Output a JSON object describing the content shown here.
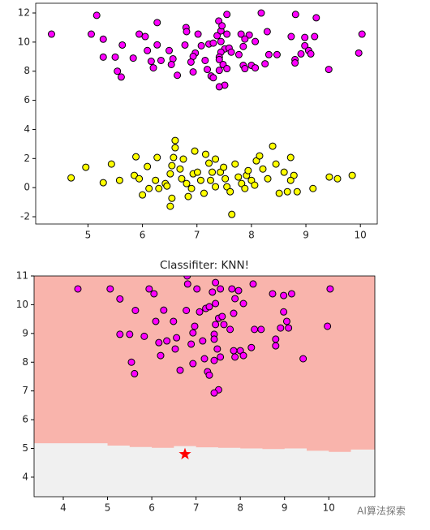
{
  "chart_data": [
    {
      "type": "scatter",
      "xlim": [
        4.04,
        10.31
      ],
      "ylim": [
        -2.5,
        12.67
      ],
      "xticks": [
        5,
        6,
        7,
        8,
        9,
        10
      ],
      "yticks": [
        -2,
        0,
        2,
        4,
        6,
        8,
        10,
        12
      ],
      "series": [
        {
          "color": "#ff00ff",
          "x": [
            4.33,
            5.06,
            5.28,
            5.63,
            5.5,
            5.28,
            5.94,
            6.05,
            5.83,
            6.16,
            6.34,
            6.09,
            6.27,
            6.49,
            6.2,
            6.56,
            6.53,
            6.64,
            5.54,
            5.61,
            6.8,
            6.81,
            6.78,
            7.02,
            6.97,
            6.93,
            6.89,
            6.93,
            7.08,
            7.22,
            7.3,
            7.15,
            7.19,
            7.26,
            7.3,
            7.37,
            7.44,
            7.55,
            7.44,
            7.51,
            7.59,
            7.44,
            7.63,
            7.41,
            7.41,
            7.48,
            7.41,
            7.55,
            7.51,
            7.41,
            7.81,
            7.96,
            7.88,
            7.85,
            7.77,
            8.07,
            8.29,
            7.85,
            8.0,
            7.88,
            8.07,
            8.25,
            8.32,
            8.47,
            8.73,
            8.98,
            9.16,
            8.98,
            9.05,
            8.91,
            9.09,
            8.8,
            8.8,
            9.42,
            9.97,
            10.03,
            5.16,
            6.27,
            7.4,
            7.55,
            8.18,
            8.81,
            9.19,
            7.46
          ],
          "y": [
            10.55,
            10.55,
            10.2,
            9.8,
            8.97,
            8.97,
            10.55,
            10.38,
            8.9,
            8.68,
            8.74,
            9.42,
            9.81,
            9.42,
            8.23,
            8.85,
            8.46,
            7.72,
            8.0,
            7.6,
            11.0,
            10.72,
            9.8,
            10.55,
            9.25,
            9.02,
            8.63,
            7.95,
            9.75,
            9.87,
            9.93,
            8.74,
            8.12,
            7.67,
            7.55,
            10.44,
            10.77,
            10.55,
            10.04,
            9.53,
            9.59,
            9.31,
            9.31,
            8.97,
            8.8,
            8.46,
            8.06,
            8.18,
            7.04,
            6.93,
            10.55,
            10.49,
            10.21,
            9.7,
            9.14,
            10.04,
            10.72,
            8.4,
            8.4,
            8.18,
            8.23,
            8.51,
            9.14,
            9.14,
            10.38,
            10.32,
            10.38,
            9.75,
            9.42,
            9.19,
            9.19,
            8.8,
            8.57,
            8.12,
            9.25,
            10.55,
            11.84,
            11.34,
            11.45,
            11.9,
            12.0,
            11.9,
            11.67,
            11.12
          ]
        },
        {
          "color": "#ffff00",
          "x": [
            4.69,
            4.96,
            5.28,
            5.43,
            5.58,
            5.85,
            5.88,
            5.94,
            6.0,
            6.12,
            6.09,
            6.24,
            6.27,
            6.3,
            6.42,
            6.45,
            6.51,
            6.54,
            6.6,
            6.6,
            6.57,
            6.54,
            6.51,
            6.69,
            6.72,
            6.75,
            6.81,
            6.84,
            6.9,
            6.96,
            6.93,
            7.01,
            7.07,
            7.13,
            7.16,
            7.22,
            7.28,
            7.25,
            7.34,
            7.34,
            7.43,
            7.49,
            7.52,
            7.55,
            7.61,
            7.64,
            7.7,
            7.76,
            7.82,
            7.88,
            7.91,
            7.94,
            8.0,
            8.06,
            8.09,
            8.15,
            8.21,
            8.3,
            8.39,
            8.45,
            8.51,
            8.6,
            8.66,
            8.72,
            8.78,
            8.84,
            9.13,
            9.43,
            9.58,
            9.85,
            8.72
          ],
          "y": [
            0.67,
            1.4,
            0.34,
            1.62,
            0.5,
            0.84,
            2.12,
            0.61,
            -0.5,
            -0.06,
            1.45,
            0.5,
            2.07,
            -0.06,
            0.28,
            0.11,
            0.95,
            1.51,
            3.24,
            2.74,
            2.07,
            -0.73,
            -1.28,
            1.28,
            0.61,
            1.96,
            0.28,
            -0.61,
            -0.06,
            2.51,
            0.95,
            1.06,
            0.5,
            -0.39,
            2.29,
            1.68,
            1.06,
            0.5,
            0.06,
            1.96,
            1.06,
            1.4,
            0.61,
            0.06,
            -0.28,
            -1.84,
            1.62,
            0.73,
            0.28,
            -0.06,
            0.84,
            1.17,
            0.5,
            0.17,
            1.84,
            2.18,
            1.28,
            0.61,
            2.85,
            1.62,
            -0.39,
            1.06,
            -0.28,
            2.07,
            0.84,
            -0.28,
            -0.06,
            0.73,
            0.61,
            0.84,
            0.5
          ]
        }
      ]
    },
    {
      "type": "decision-region",
      "title": "Classifiter: KNN!",
      "xlim": [
        3.34,
        11.04
      ],
      "ylim": [
        3.32,
        11
      ],
      "xticks": [
        4,
        5,
        6,
        7,
        8,
        9,
        10
      ],
      "yticks": [
        4,
        5,
        6,
        7,
        8,
        9,
        10,
        11
      ],
      "region_colors": [
        "#f9b4ac",
        "#f0f0f0"
      ],
      "boundary": {
        "x": [
          3.34,
          4.5,
          5.0,
          5.5,
          6.0,
          6.5,
          7.0,
          7.5,
          8.0,
          8.5,
          9.0,
          9.5,
          10.0,
          10.5,
          11.04
        ],
        "y": [
          5.18,
          5.18,
          5.1,
          5.05,
          5.02,
          5.08,
          5.04,
          5.02,
          5.0,
          4.98,
          5.0,
          4.92,
          4.88,
          4.96,
          4.98
        ]
      },
      "marker": {
        "x": 6.75,
        "y": 4.8,
        "color": "#ff0000"
      },
      "series": [
        {
          "color": "#ff00ff",
          "x": [
            4.33,
            5.06,
            5.28,
            5.63,
            5.5,
            5.28,
            5.94,
            6.05,
            5.83,
            6.16,
            6.34,
            6.09,
            6.27,
            6.49,
            6.2,
            6.56,
            6.53,
            6.64,
            5.54,
            5.61,
            6.8,
            6.81,
            6.78,
            7.02,
            6.97,
            6.93,
            6.89,
            6.93,
            7.08,
            7.22,
            7.3,
            7.15,
            7.19,
            7.26,
            7.3,
            7.37,
            7.44,
            7.55,
            7.44,
            7.51,
            7.59,
            7.44,
            7.63,
            7.41,
            7.41,
            7.48,
            7.41,
            7.55,
            7.51,
            7.41,
            7.81,
            7.96,
            7.88,
            7.85,
            7.77,
            8.07,
            8.29,
            7.85,
            8.0,
            7.88,
            8.07,
            8.25,
            8.32,
            8.47,
            8.73,
            8.98,
            9.16,
            8.98,
            9.05,
            8.91,
            9.09,
            8.8,
            8.8,
            9.42,
            9.97,
            10.03
          ],
          "y": [
            10.55,
            10.55,
            10.2,
            9.8,
            8.97,
            8.97,
            10.55,
            10.38,
            8.9,
            8.68,
            8.74,
            9.42,
            9.81,
            9.42,
            8.23,
            8.85,
            8.46,
            7.72,
            8.0,
            7.6,
            11.0,
            10.72,
            9.8,
            10.55,
            9.25,
            9.02,
            8.63,
            7.95,
            9.75,
            9.87,
            9.93,
            8.74,
            8.12,
            7.67,
            7.55,
            10.44,
            10.77,
            10.55,
            10.04,
            9.53,
            9.59,
            9.31,
            9.31,
            8.97,
            8.8,
            8.46,
            8.06,
            8.18,
            7.04,
            6.93,
            10.55,
            10.49,
            10.21,
            9.7,
            9.14,
            10.04,
            10.72,
            8.4,
            8.4,
            8.18,
            8.23,
            8.51,
            9.14,
            9.14,
            10.38,
            10.32,
            10.38,
            9.75,
            9.42,
            9.19,
            9.19,
            8.8,
            8.57,
            8.12,
            9.25,
            10.55
          ]
        }
      ]
    }
  ],
  "watermark": "AI算法探索"
}
